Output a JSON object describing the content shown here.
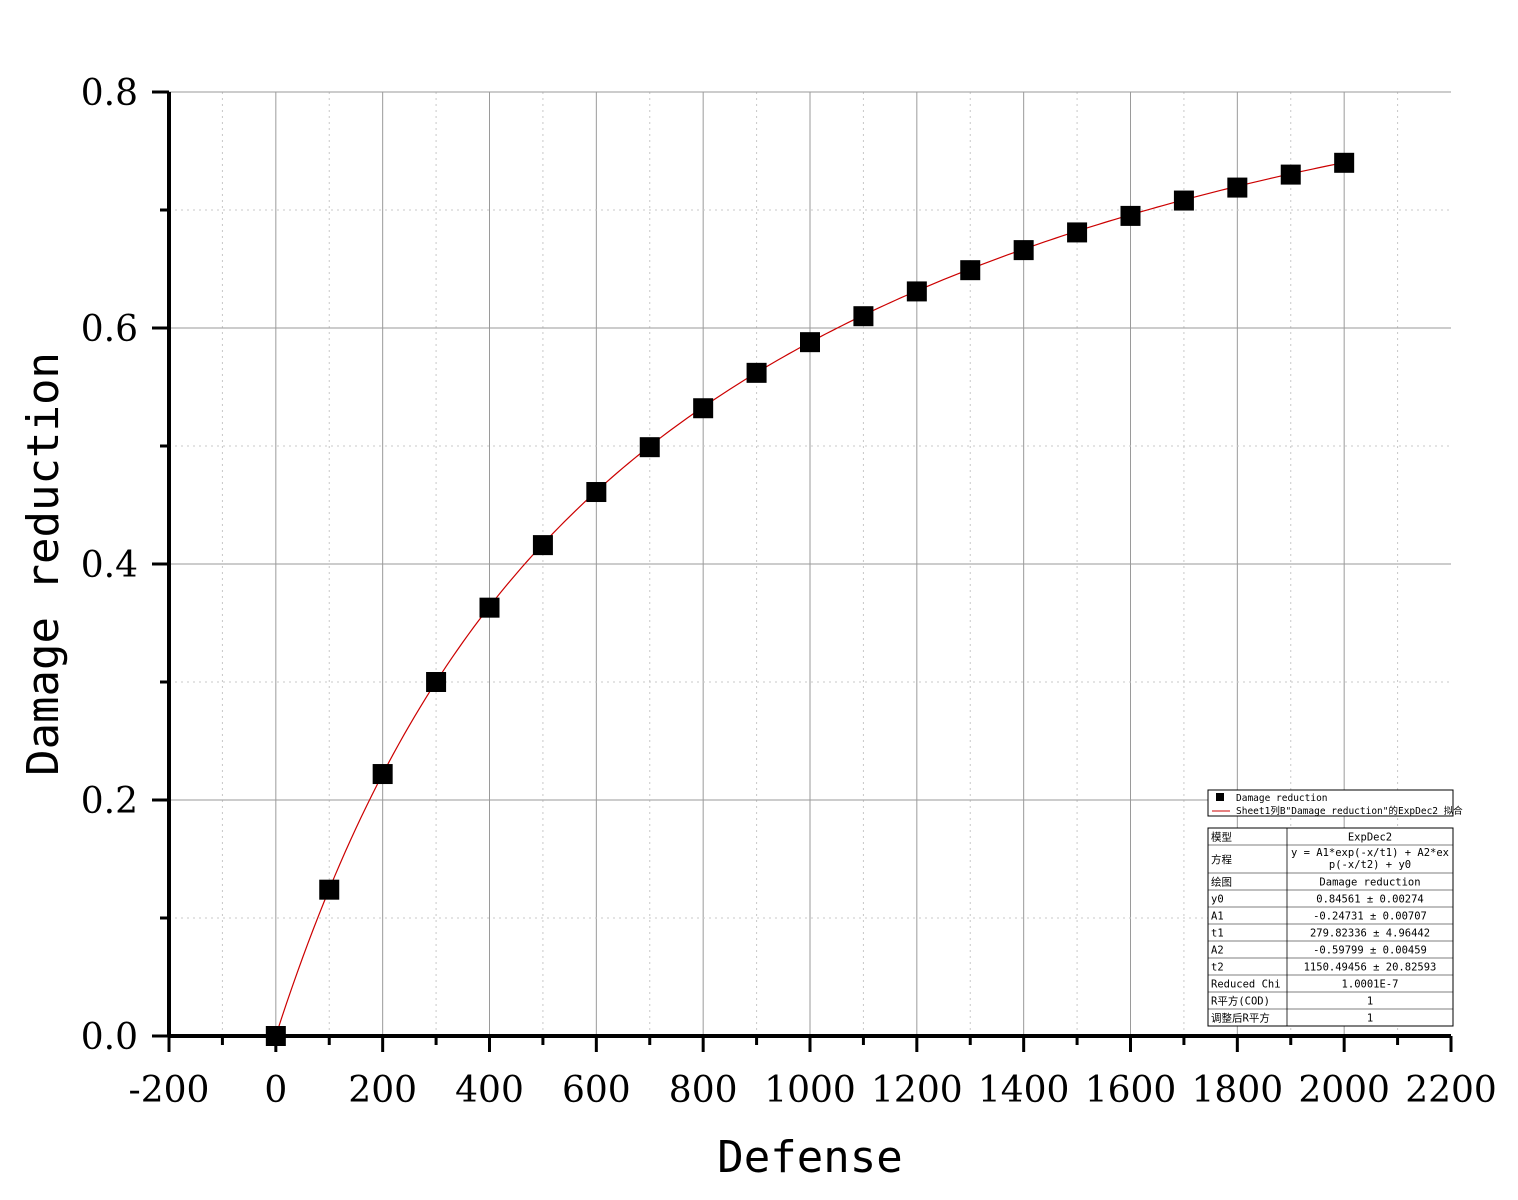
{
  "chart_data": {
    "type": "scatter",
    "xlabel": "Defense",
    "ylabel": "Damage reduction",
    "xlim": [
      -200,
      2200
    ],
    "ylim": [
      0,
      0.8
    ],
    "x_ticks": [
      "-200",
      "0",
      "200",
      "400",
      "600",
      "800",
      "1000",
      "1200",
      "1400",
      "1600",
      "1800",
      "2000",
      "2200"
    ],
    "y_ticks": [
      "0.0",
      "0.2",
      "0.4",
      "0.6",
      "0.8"
    ],
    "grid": true,
    "legend_position": "bottom-right",
    "series": [
      {
        "name": "Damage reduction",
        "kind": "scatter",
        "marker": "square",
        "color": "#000000",
        "x": [
          0,
          100,
          200,
          300,
          400,
          500,
          600,
          700,
          800,
          900,
          1000,
          1100,
          1200,
          1300,
          1400,
          1500,
          1600,
          1700,
          1800,
          1900,
          2000
        ],
        "y": [
          0.0,
          0.124,
          0.222,
          0.3,
          0.363,
          0.416,
          0.461,
          0.499,
          0.532,
          0.562,
          0.588,
          0.61,
          0.631,
          0.649,
          0.666,
          0.681,
          0.695,
          0.708,
          0.719,
          0.73,
          0.74
        ]
      },
      {
        "name": "Sheet1列B\"Damage reduction\"的ExpDec2 拟合",
        "kind": "line",
        "color": "#cc0000",
        "params": {
          "y0": 0.84561,
          "A1": -0.24731,
          "t1": 279.82336,
          "A2": -0.59799,
          "t2": 1150.49456
        },
        "x_range": [
          0,
          2000
        ]
      }
    ],
    "fit_table": {
      "rows": [
        {
          "label": "模型",
          "value": "ExpDec2"
        },
        {
          "label": "方程",
          "value": "y = A1*exp(-x/t1) + A2*ex",
          "value2": "p(-x/t2) + y0"
        },
        {
          "label": "绘图",
          "value": "Damage reduction"
        },
        {
          "label": "y0",
          "value": "0.84561 ± 0.00274"
        },
        {
          "label": "A1",
          "value": "-0.24731 ± 0.00707"
        },
        {
          "label": "t1",
          "value": "279.82336 ± 4.96442"
        },
        {
          "label": "A2",
          "value": "-0.59799 ± 0.00459"
        },
        {
          "label": "t2",
          "value": "1150.49456 ± 20.82593"
        },
        {
          "label": "Reduced Chi",
          "value": "1.0001E-7"
        },
        {
          "label": "R平方(COD)",
          "value": "1"
        },
        {
          "label": "调整后R平方",
          "value": "1"
        }
      ]
    }
  }
}
